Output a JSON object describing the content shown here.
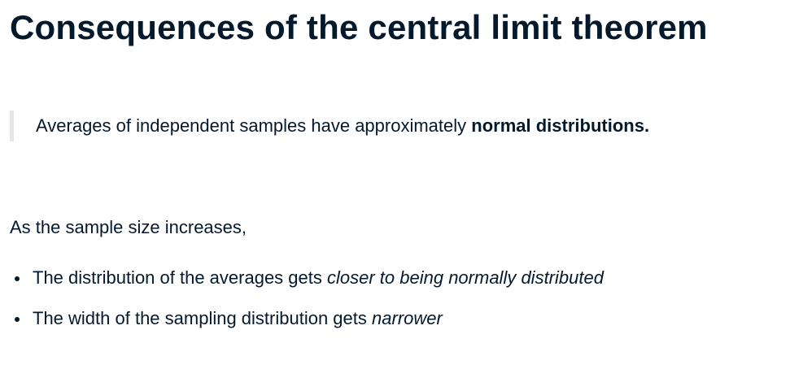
{
  "title": "Consequences of the central limit theorem",
  "quote": {
    "text": "Averages of independent samples have approximately ",
    "bold": "normal distributions."
  },
  "intro": "As the sample size increases,",
  "bullets": [
    {
      "text": "The distribution of the averages gets ",
      "italic": "closer to being normally distributed"
    },
    {
      "text": "The width of the sampling distribution gets ",
      "italic": "narrower"
    }
  ]
}
